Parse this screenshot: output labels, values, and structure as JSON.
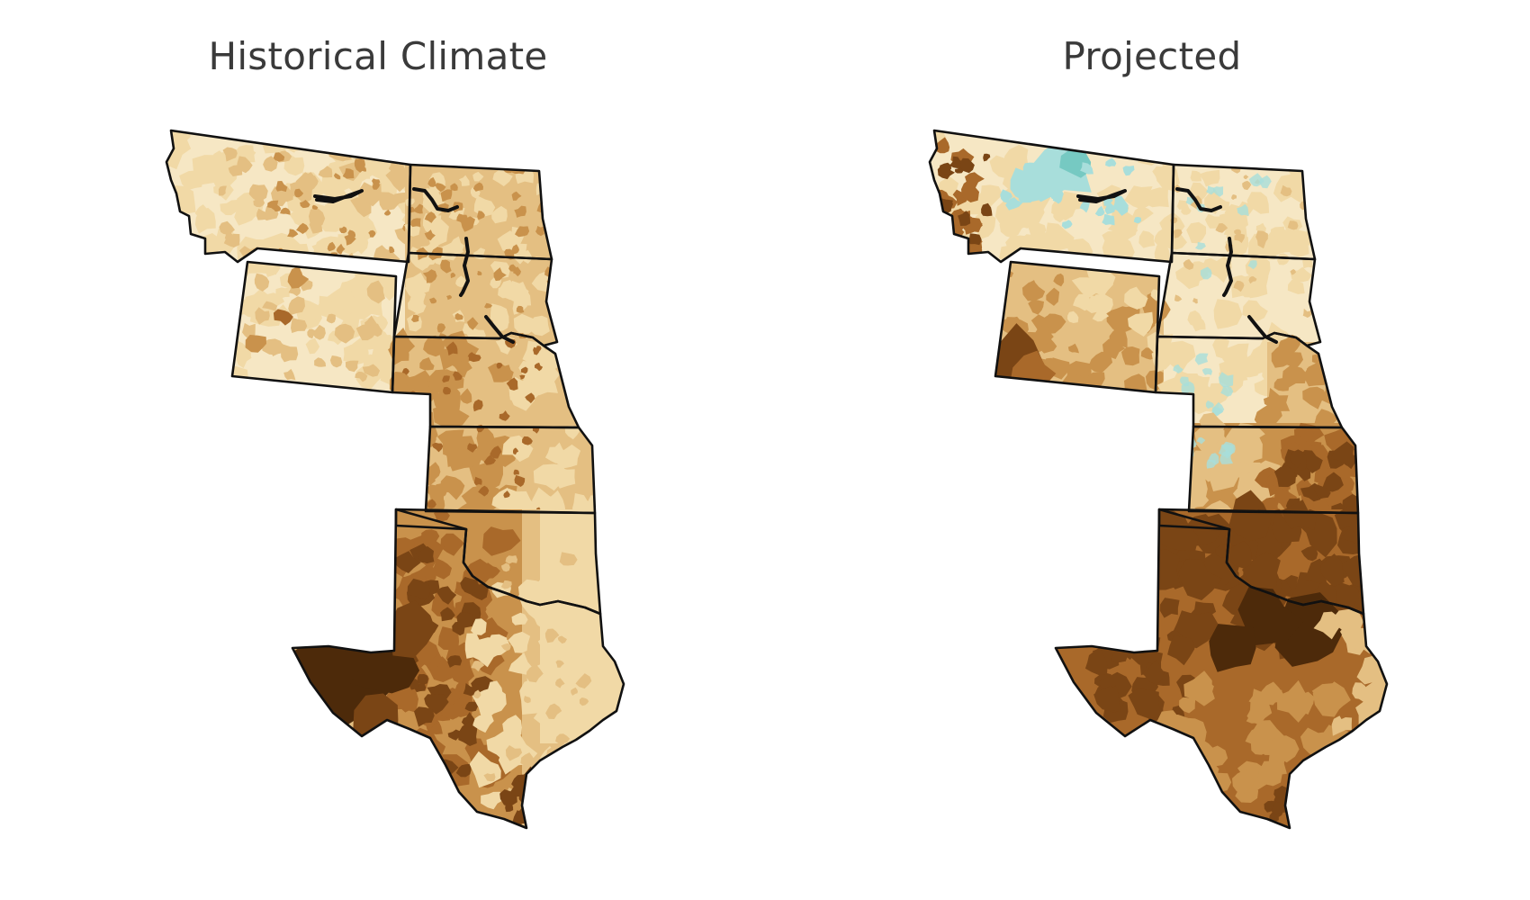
{
  "panels": [
    {
      "id": "historical",
      "title": "Historical Climate",
      "palette": {
        "base": "#f6e7c4",
        "light": "#f1d9a6",
        "tan": "#e4bf82",
        "medium": "#c9924c",
        "brown": "#a9692a",
        "dark": "#7a4515",
        "darkest": "#4d2a0a",
        "teal": "#a8dedb",
        "teal_dark": "#76c9c2",
        "border": "#111111"
      }
    },
    {
      "id": "projected",
      "title": "Projected",
      "palette": {
        "base": "#f6e7c4",
        "light": "#f1d9a6",
        "tan": "#e4bf82",
        "medium": "#c9924c",
        "brown": "#a9692a",
        "dark": "#7a4515",
        "darkest": "#4d2a0a",
        "teal": "#a8dedb",
        "teal_dark": "#76c9c2",
        "border": "#111111"
      }
    }
  ]
}
